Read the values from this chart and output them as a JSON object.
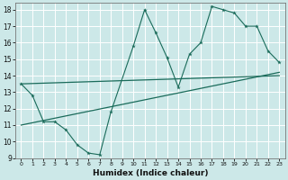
{
  "xlabel": "Humidex (Indice chaleur)",
  "bg_color": "#cce8e8",
  "grid_color": "#ffffff",
  "line_color": "#1a6b5a",
  "xlim": [
    -0.5,
    23.5
  ],
  "ylim": [
    9,
    18.4
  ],
  "xticks": [
    0,
    1,
    2,
    3,
    4,
    5,
    6,
    7,
    8,
    9,
    10,
    11,
    12,
    13,
    14,
    15,
    16,
    17,
    18,
    19,
    20,
    21,
    22,
    23
  ],
  "yticks": [
    9,
    10,
    11,
    12,
    13,
    14,
    15,
    16,
    17,
    18
  ],
  "line1_x": [
    0,
    1,
    2,
    3,
    4,
    5,
    6,
    7,
    8,
    10,
    11,
    12,
    13,
    14,
    15,
    16,
    17,
    18,
    19,
    20,
    21,
    22,
    23
  ],
  "line1_y": [
    13.5,
    12.8,
    11.2,
    11.2,
    10.7,
    9.8,
    9.3,
    9.2,
    11.8,
    15.8,
    18.0,
    16.6,
    15.1,
    13.3,
    15.3,
    16.0,
    18.2,
    18.0,
    17.8,
    17.0,
    17.0,
    15.5,
    14.8
  ],
  "line2_x": [
    0,
    23
  ],
  "line2_y": [
    11.0,
    14.2
  ],
  "line3_x": [
    0,
    23
  ],
  "line3_y": [
    13.5,
    14.0
  ]
}
